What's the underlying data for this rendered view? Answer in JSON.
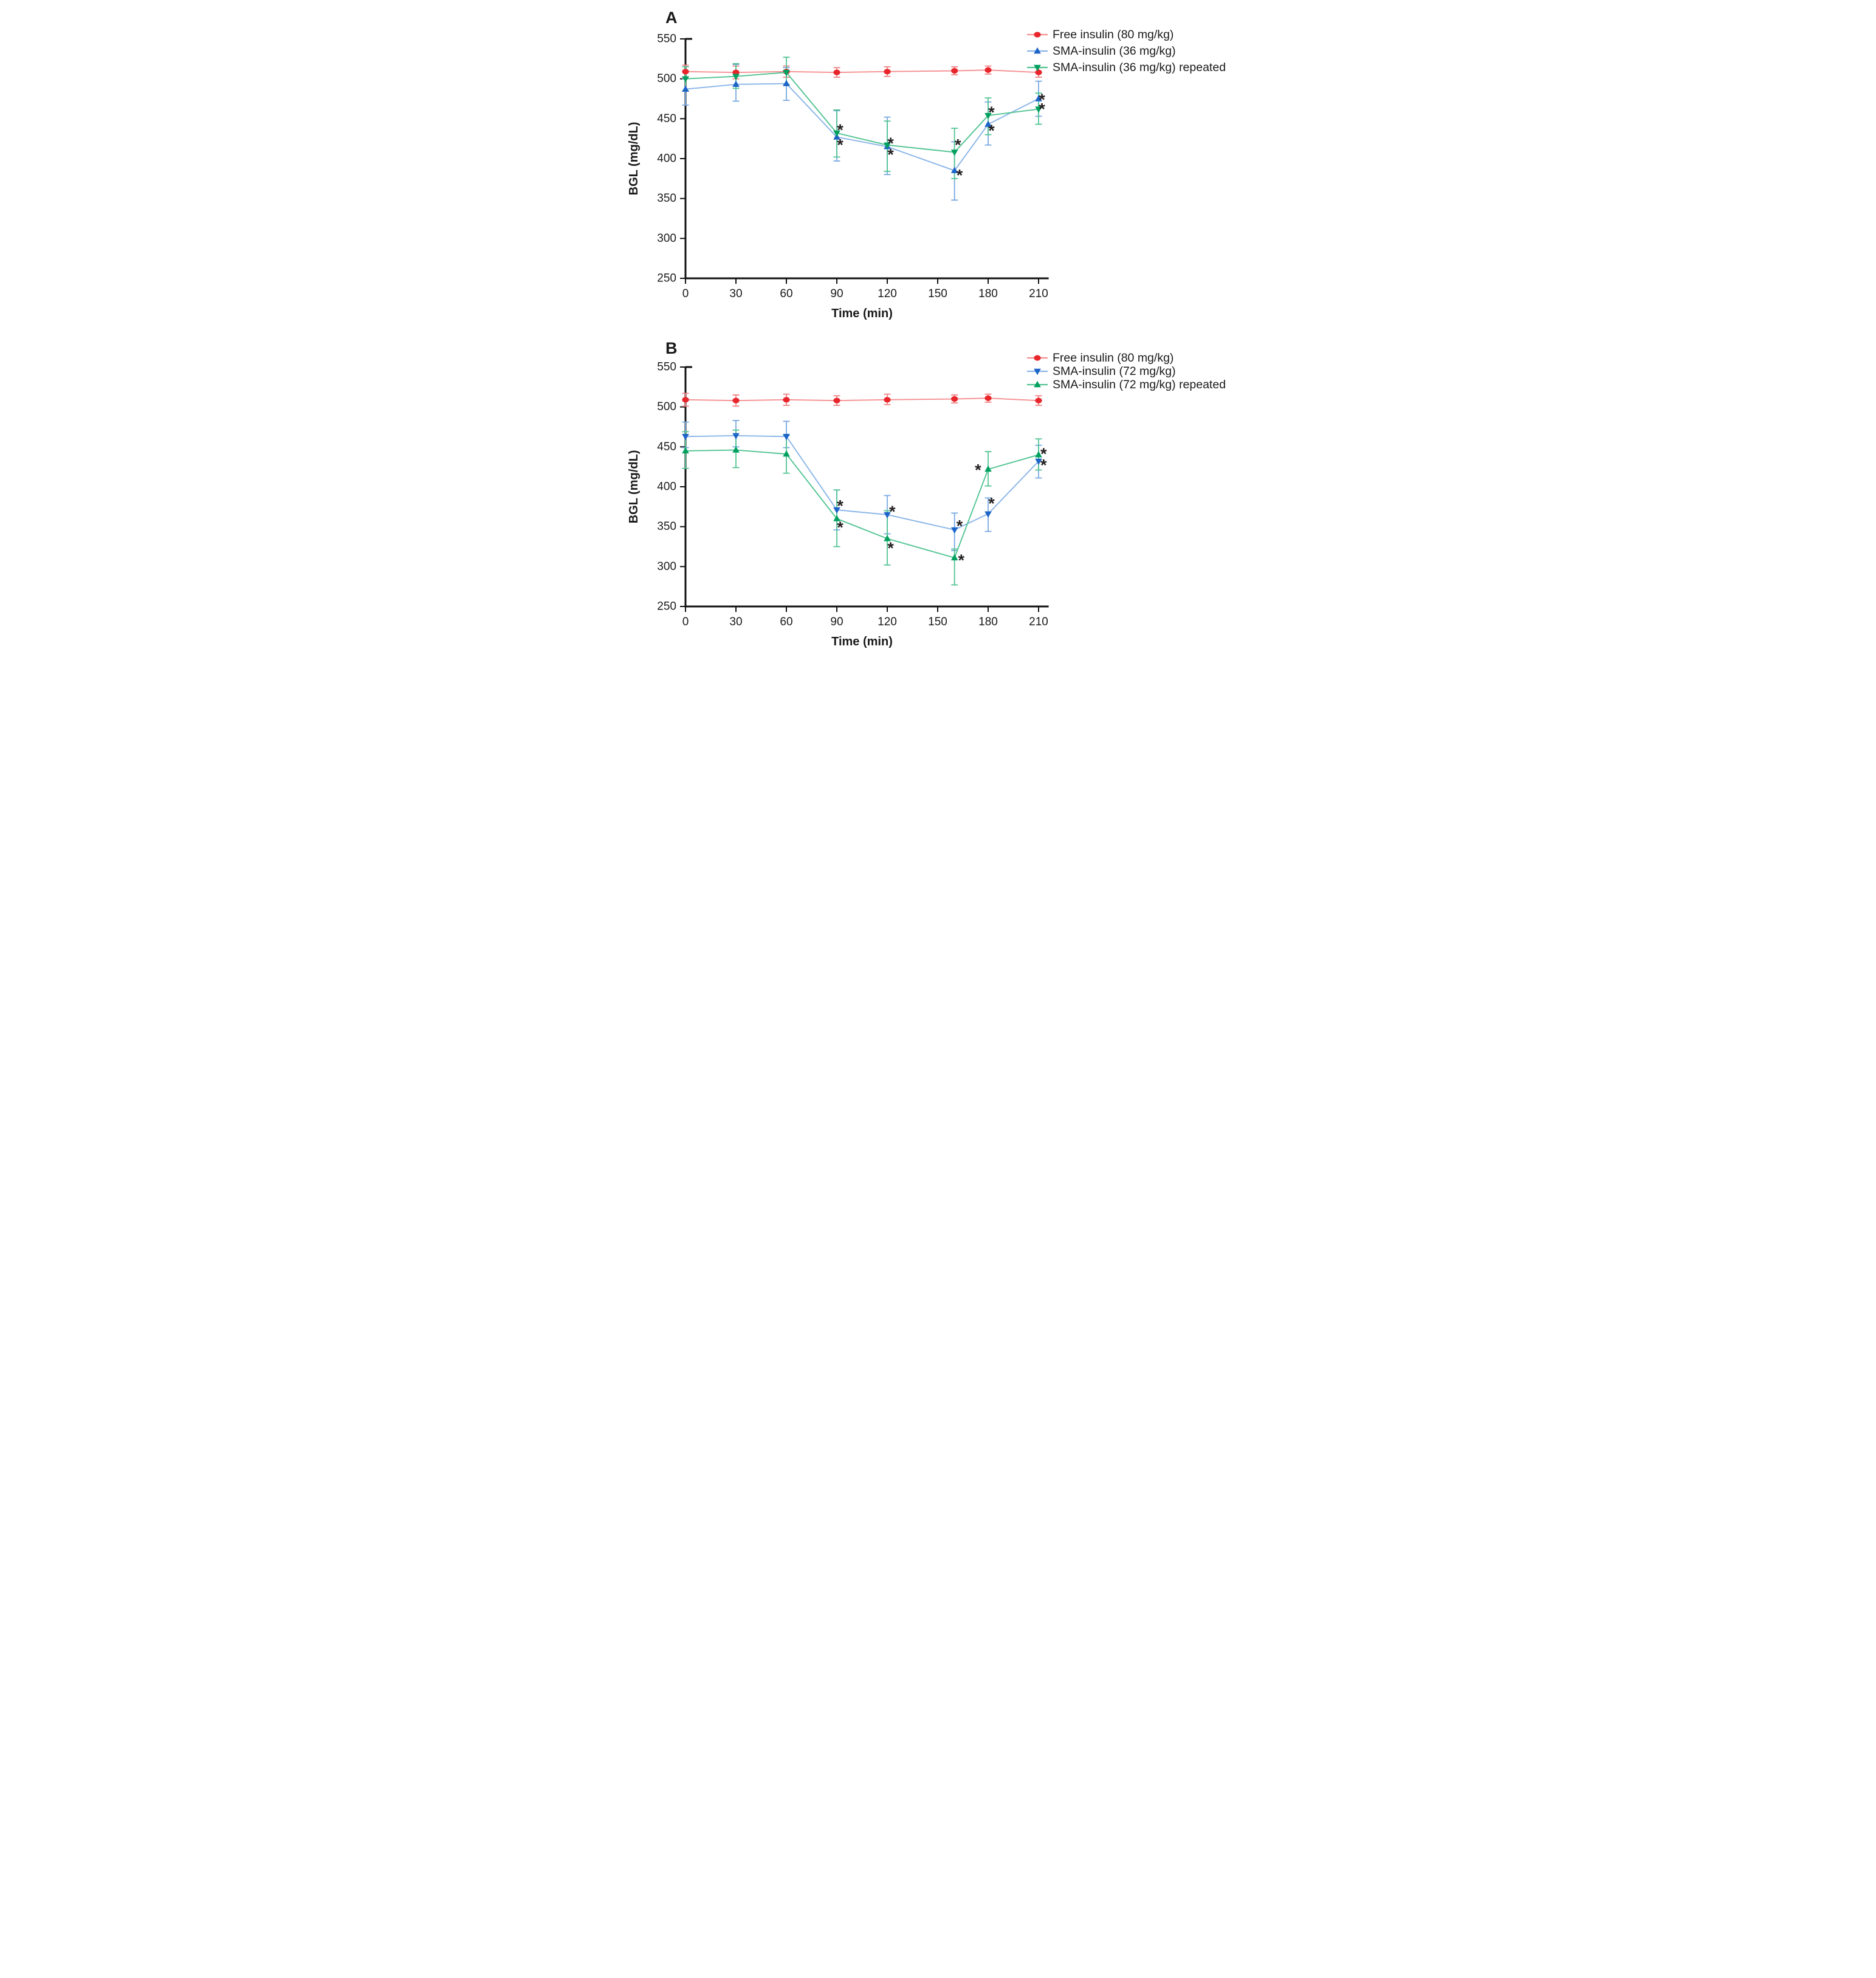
{
  "figure": {
    "background": "#ffffff",
    "axis_color": "#111111",
    "text_color": "#1a1a1a",
    "asterisk_color": "#231f20",
    "asterisk_glyph": "*"
  },
  "chart_data": [
    {
      "type": "line",
      "panel_label": "A",
      "xlabel": "Time (min)",
      "ylabel": "BGL (mg/dL)",
      "xlim": [
        0,
        216
      ],
      "ylim": [
        250,
        550
      ],
      "xticks": [
        0,
        30,
        60,
        90,
        120,
        150,
        180,
        210
      ],
      "yticks": [
        250,
        300,
        350,
        400,
        450,
        500,
        550
      ],
      "grid": false,
      "legend_position": "top-right",
      "x": [
        0,
        30,
        60,
        90,
        120,
        160,
        180,
        210
      ],
      "series": [
        {
          "name": "Free insulin (80 mg/kg)",
          "marker": "circle",
          "marker_color": "#e8252b",
          "line_color": "#f58f91",
          "err_color": "#ef8385",
          "values": [
            509,
            508,
            509,
            508,
            509,
            510,
            511,
            508
          ],
          "err_up": [
            8,
            8,
            7,
            6,
            6,
            5,
            5,
            6
          ],
          "err_down": [
            8,
            8,
            7,
            6,
            6,
            5,
            5,
            6
          ]
        },
        {
          "name": "SMA-insulin (36 mg/kg)",
          "marker": "triangle-up",
          "marker_color": "#1d64c8",
          "line_color": "#8ab5e8",
          "err_color": "#79a9e2",
          "values": [
            487,
            493,
            494,
            427,
            415,
            385,
            443,
            475
          ],
          "err_up": [
            13,
            25,
            20,
            33,
            37,
            36,
            28,
            22
          ],
          "err_down": [
            20,
            21,
            21,
            30,
            35,
            37,
            26,
            22
          ]
        },
        {
          "name": "SMA-insulin (36 mg/kg) repeated",
          "marker": "triangle-down",
          "marker_color": "#00a05e",
          "line_color": "#52c493",
          "err_color": "#52c493",
          "values": [
            500,
            503,
            508,
            432,
            417,
            408,
            454,
            462
          ],
          "err_up": [
            15,
            16,
            19,
            29,
            30,
            30,
            22,
            20
          ],
          "err_down": [
            15,
            15,
            15,
            30,
            33,
            33,
            24,
            19
          ]
        }
      ],
      "annotations": [
        {
          "t": 92,
          "v": 439
        },
        {
          "t": 92,
          "v": 420
        },
        {
          "t": 122,
          "v": 422
        },
        {
          "t": 122,
          "v": 408
        },
        {
          "t": 162,
          "v": 420
        },
        {
          "t": 163,
          "v": 382
        },
        {
          "t": 182,
          "v": 461
        },
        {
          "t": 182,
          "v": 438
        },
        {
          "t": 212,
          "v": 477
        },
        {
          "t": 212,
          "v": 465
        }
      ]
    },
    {
      "type": "line",
      "panel_label": "B",
      "xlabel": "Time (min)",
      "ylabel": "BGL (mg/dL)",
      "xlim": [
        0,
        216
      ],
      "ylim": [
        250,
        550
      ],
      "xticks": [
        0,
        30,
        60,
        90,
        120,
        150,
        180,
        210
      ],
      "yticks": [
        250,
        300,
        350,
        400,
        450,
        500,
        550
      ],
      "grid": false,
      "legend_position": "top-right",
      "x": [
        0,
        30,
        60,
        90,
        120,
        160,
        180,
        210
      ],
      "series": [
        {
          "name": "Free insulin (80 mg/kg)",
          "marker": "circle",
          "marker_color": "#e8252b",
          "line_color": "#f58f91",
          "err_color": "#ef8385",
          "values": [
            509,
            508,
            509,
            508,
            509,
            510,
            511,
            508
          ],
          "err_up": [
            8,
            7,
            7,
            6,
            7,
            5,
            5,
            6
          ],
          "err_down": [
            8,
            7,
            7,
            6,
            6,
            5,
            5,
            6
          ]
        },
        {
          "name": "SMA-insulin (72 mg/kg)",
          "marker": "triangle-down",
          "marker_color": "#1d64c8",
          "line_color": "#8ab5e8",
          "err_color": "#79a9e2",
          "values": [
            463,
            464,
            463,
            371,
            365,
            346,
            366,
            432
          ],
          "err_up": [
            18,
            19,
            19,
            25,
            24,
            21,
            20,
            20
          ],
          "err_down": [
            14,
            14,
            14,
            25,
            24,
            26,
            22,
            21
          ]
        },
        {
          "name": "SMA-insulin (72 mg/kg) repeated",
          "marker": "triangle-up",
          "marker_color": "#00a05e",
          "line_color": "#52c493",
          "err_color": "#52c493",
          "values": [
            445,
            446,
            441,
            360,
            335,
            311,
            422,
            440
          ],
          "err_up": [
            24,
            25,
            23,
            36,
            35,
            11,
            22,
            20
          ],
          "err_down": [
            22,
            22,
            24,
            35,
            33,
            34,
            21,
            19
          ]
        }
      ],
      "annotations": [
        {
          "t": 92,
          "v": 379
        },
        {
          "t": 92,
          "v": 352
        },
        {
          "t": 123,
          "v": 372
        },
        {
          "t": 122,
          "v": 326
        },
        {
          "t": 163,
          "v": 354
        },
        {
          "t": 164,
          "v": 311
        },
        {
          "t": 174,
          "v": 424
        },
        {
          "t": 182,
          "v": 382
        },
        {
          "t": 213,
          "v": 444
        },
        {
          "t": 213,
          "v": 430
        }
      ]
    }
  ]
}
